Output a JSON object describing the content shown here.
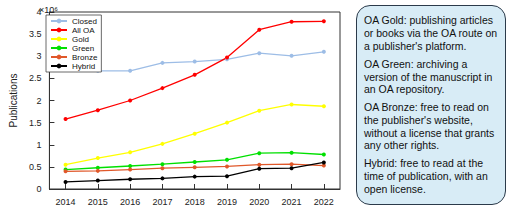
{
  "chart_data": {
    "type": "line",
    "y_label": "Publications",
    "y_multiplier": "×10⁶",
    "categories": [
      "2014",
      "2015",
      "2016",
      "2017",
      "2018",
      "2019",
      "2020",
      "2021",
      "2022"
    ],
    "series": [
      {
        "name": "Closed",
        "color": "#9dbde6",
        "values": [
          2.72,
          2.67,
          2.67,
          2.85,
          2.88,
          2.93,
          3.07,
          3.01,
          3.1
        ]
      },
      {
        "name": "All OA",
        "color": "#ff0000",
        "values": [
          1.58,
          1.78,
          2.0,
          2.28,
          2.58,
          2.97,
          3.6,
          3.78,
          3.79
        ]
      },
      {
        "name": "Gold",
        "color": "#ffff00",
        "values": [
          0.55,
          0.7,
          0.83,
          1.02,
          1.25,
          1.5,
          1.77,
          1.91,
          1.87
        ]
      },
      {
        "name": "Green",
        "color": "#00e000",
        "values": [
          0.44,
          0.48,
          0.52,
          0.56,
          0.61,
          0.66,
          0.81,
          0.82,
          0.78
        ]
      },
      {
        "name": "Bronze",
        "color": "#e0582a",
        "values": [
          0.4,
          0.41,
          0.44,
          0.47,
          0.49,
          0.51,
          0.55,
          0.56,
          0.53
        ]
      },
      {
        "name": "Hybrid",
        "color": "#000000",
        "values": [
          0.16,
          0.19,
          0.22,
          0.24,
          0.28,
          0.29,
          0.46,
          0.47,
          0.6
        ]
      }
    ],
    "ylim": [
      0,
      4
    ],
    "yticks": [
      0,
      0.5,
      1,
      1.5,
      2,
      2.5,
      3,
      3.5,
      4
    ],
    "grid": false,
    "legend": "top-left",
    "marker": "circle",
    "annotations": [
      "OA Gold: publishing articles or books via the OA route on a publisher's platform.",
      "OA Green: archiving a version of the manuscript in an OA repository.",
      "OA Bronze: free to read on the publisher's website, without a license that grants any other rights.",
      "Hybrid: free to read at the time of publication, with an open license."
    ]
  }
}
